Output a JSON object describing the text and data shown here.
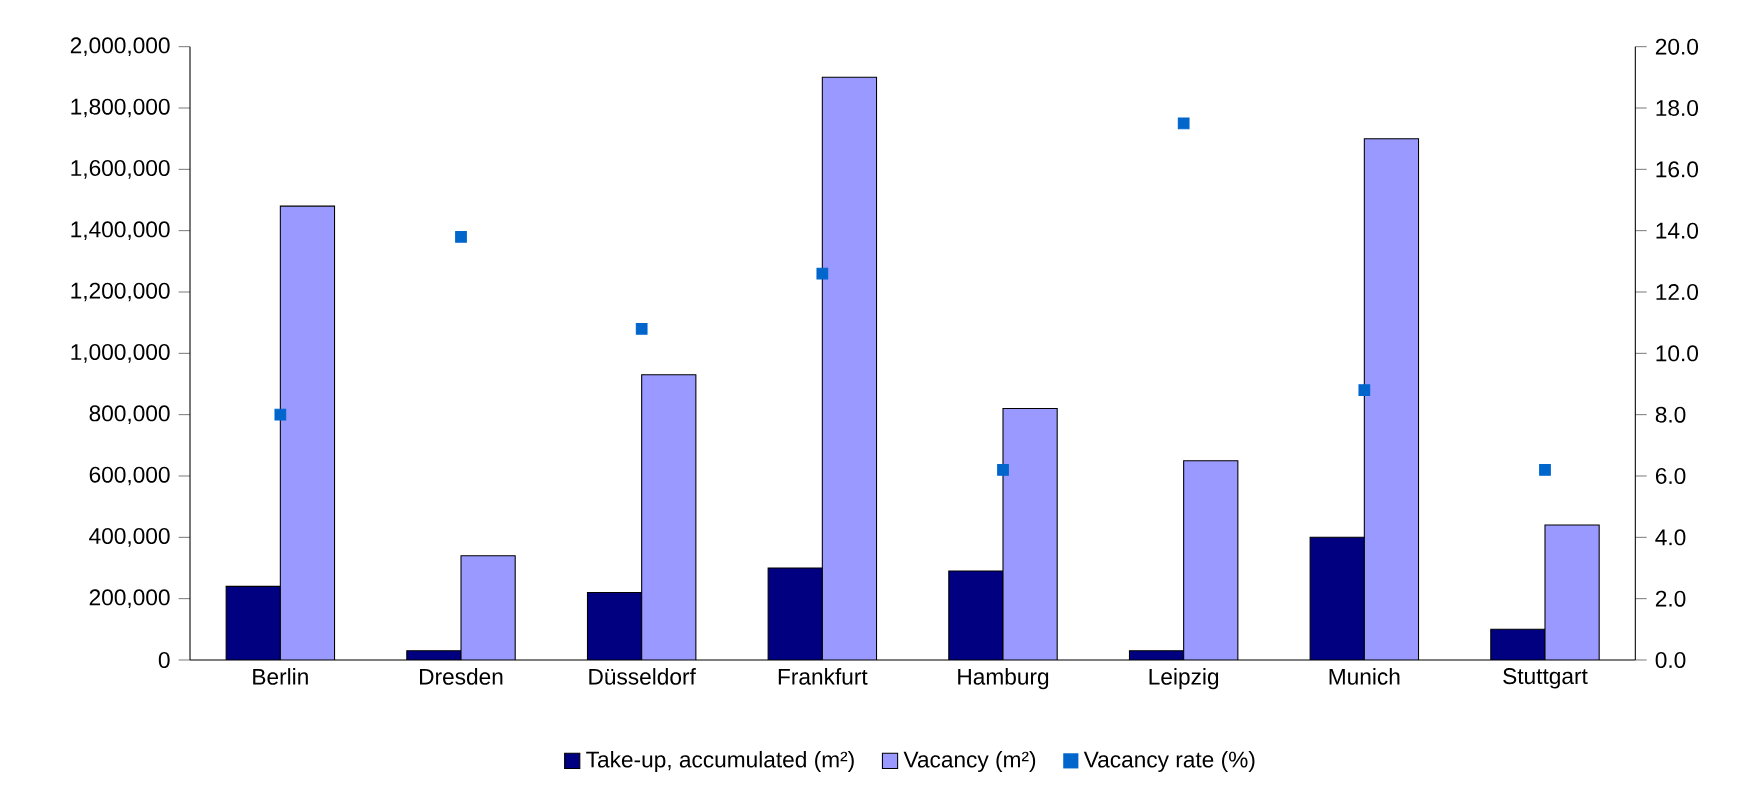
{
  "chart_data": {
    "type": "bar",
    "categories": [
      "Berlin",
      "Dresden",
      "Düsseldorf",
      "Frankfurt",
      "Hamburg",
      "Leipzig",
      "Munich",
      "Stuttgart"
    ],
    "series": [
      {
        "name": "Take-up, accumulated (m²)",
        "color": "#000080",
        "values": [
          240000,
          30000,
          220000,
          300000,
          290000,
          30000,
          400000,
          100000
        ]
      },
      {
        "name": "Vacancy (m²)",
        "color": "#9999ff",
        "values": [
          1480000,
          340000,
          930000,
          1900000,
          820000,
          650000,
          1700000,
          440000
        ]
      },
      {
        "name": "Vacancy rate (%)",
        "color": "#0066cc",
        "type": "scatter",
        "axis": "y2",
        "marker": "square",
        "values": [
          8.0,
          13.8,
          10.8,
          12.6,
          6.2,
          17.5,
          8.8,
          6.2
        ]
      }
    ],
    "ylim": [
      0,
      2000000
    ],
    "yticks": [
      {
        "value": 0,
        "label": "0"
      },
      {
        "value": 200000,
        "label": "200,000"
      },
      {
        "value": 400000,
        "label": "400,000"
      },
      {
        "value": 600000,
        "label": "600,000"
      },
      {
        "value": 800000,
        "label": "800,000"
      },
      {
        "value": 1000000,
        "label": "1,000,000"
      },
      {
        "value": 1200000,
        "label": "1,200,000"
      },
      {
        "value": 1400000,
        "label": "1,400,000"
      },
      {
        "value": 1600000,
        "label": "1,600,000"
      },
      {
        "value": 1800000,
        "label": "1,800,000"
      },
      {
        "value": 2000000,
        "label": "2,000,000"
      }
    ],
    "y2lim": [
      0,
      20
    ],
    "y2ticks": [
      {
        "value": 0,
        "label": "0.0"
      },
      {
        "value": 2,
        "label": "2.0"
      },
      {
        "value": 4,
        "label": "4.0"
      },
      {
        "value": 6,
        "label": "6.0"
      },
      {
        "value": 8,
        "label": "8.0"
      },
      {
        "value": 10,
        "label": "10.0"
      },
      {
        "value": 12,
        "label": "12.0"
      },
      {
        "value": 14,
        "label": "14.0"
      },
      {
        "value": 16,
        "label": "16.0"
      },
      {
        "value": 18,
        "label": "18.0"
      },
      {
        "value": 20,
        "label": "20.0"
      }
    ],
    "legend": "bottom"
  }
}
